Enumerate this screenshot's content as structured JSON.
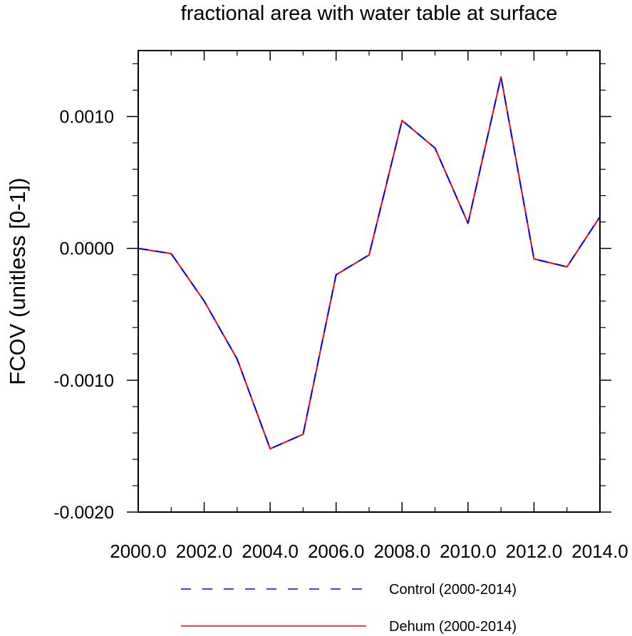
{
  "chart_data": {
    "type": "line",
    "title": "fractional area with water table at surface",
    "ylabel": "FCOV  (unitless [0-1])",
    "xlabel": "",
    "xlim": [
      2000,
      2014
    ],
    "ylim": [
      -0.002,
      0.0015
    ],
    "x_ticks": [
      2000,
      2002,
      2004,
      2006,
      2008,
      2010,
      2012,
      2014
    ],
    "x_tick_labels": [
      "2000.0",
      "2002.0",
      "2004.0",
      "2006.0",
      "2008.0",
      "2010.0",
      "2012.0",
      "2014.0"
    ],
    "y_ticks": [
      -0.002,
      -0.001,
      0.0,
      0.001
    ],
    "y_tick_labels": [
      "-0.0020",
      "-0.0010",
      "0.0000",
      "0.0010"
    ],
    "x": [
      2000,
      2001,
      2002,
      2003,
      2004,
      2005,
      2006,
      2007,
      2008,
      2009,
      2010,
      2011,
      2012,
      2013,
      2014
    ],
    "series": [
      {
        "name": "Control (2000-2014)",
        "color": "#0000ff",
        "style": "dashed",
        "values": [
          0.0,
          -4e-05,
          -0.0004,
          -0.00084,
          -0.00152,
          -0.00141,
          -0.0002,
          -5e-05,
          0.00097,
          0.00076,
          0.00019,
          0.0013,
          -8e-05,
          -0.00014,
          0.00024
        ]
      },
      {
        "name": "Dehum (2000-2014)",
        "color": "#ff0000",
        "style": "solid",
        "values": [
          0.0,
          -4e-05,
          -0.0004,
          -0.00084,
          -0.00152,
          -0.00141,
          -0.0002,
          -5e-05,
          0.00097,
          0.00076,
          0.00019,
          0.0013,
          -8e-05,
          -0.00014,
          0.00024
        ]
      }
    ],
    "grid": false,
    "legend_position": "bottom-right"
  }
}
